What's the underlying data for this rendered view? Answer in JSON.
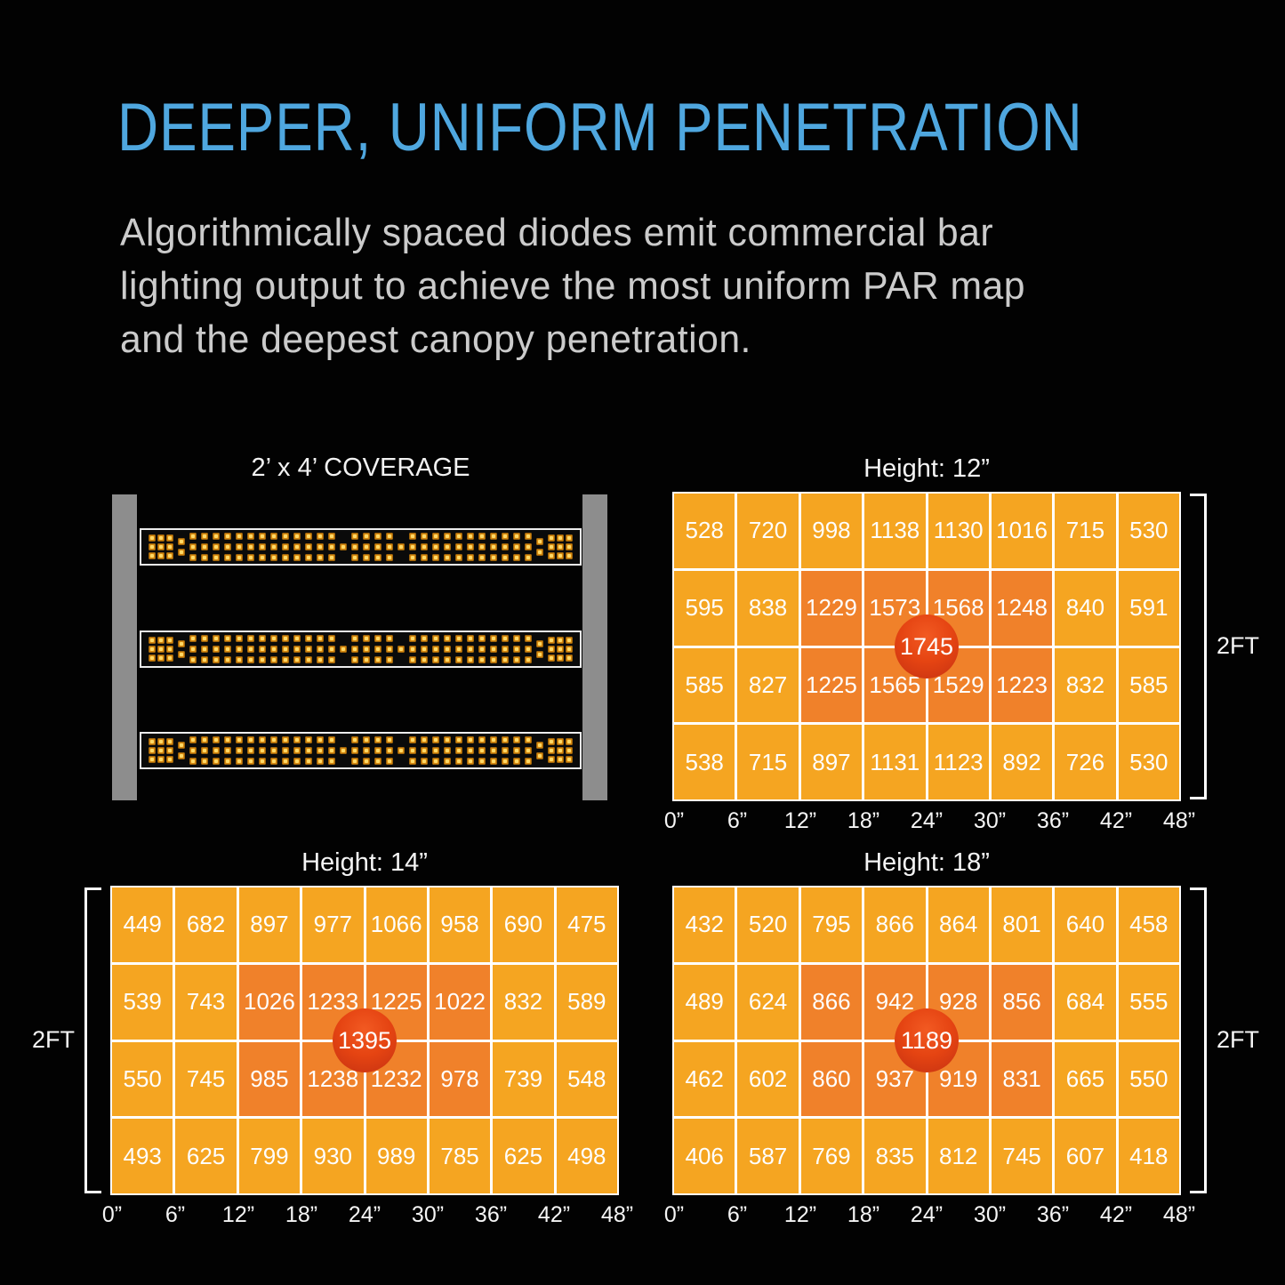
{
  "header": {
    "title": "DEEPER, UNIFORM PENETRATION",
    "body_lines": [
      "Algorithmically spaced diodes emit commercial bar",
      "lighting output to achieve the most uniform PAR map",
      "and the deepest canopy penetration."
    ]
  },
  "coverage": {
    "label": "2’ x 4’ COVERAGE"
  },
  "colors": {
    "accent_blue": "#4FA7DF",
    "body_gray": "#CBCBCB",
    "cell_orange": "#F5A521",
    "cell_hot_orange": "#F0812A",
    "peak_red": "#E54412",
    "rail_gray": "#8D8D8D",
    "diode_amber": "#FFD966"
  },
  "charts": [
    {
      "id": "12in",
      "title": "Height: 12”",
      "center_value": "1745",
      "side_label": "2FT",
      "x_ticks": [
        "0”",
        "6”",
        "12”",
        "18”",
        "24”",
        "30”",
        "36”",
        "42”",
        "48”"
      ],
      "rows": [
        [
          528,
          720,
          998,
          1138,
          1130,
          1016,
          715,
          530
        ],
        [
          595,
          838,
          1229,
          1573,
          1568,
          1248,
          840,
          591
        ],
        [
          585,
          827,
          1225,
          1565,
          1529,
          1223,
          832,
          585
        ],
        [
          538,
          715,
          897,
          1131,
          1123,
          892,
          726,
          530
        ]
      ]
    },
    {
      "id": "14in",
      "title": "Height: 14”",
      "center_value": "1395",
      "side_label": "2FT",
      "x_ticks": [
        "0”",
        "6”",
        "12”",
        "18”",
        "24”",
        "30”",
        "36”",
        "42”",
        "48”"
      ],
      "rows": [
        [
          449,
          682,
          897,
          977,
          1066,
          958,
          690,
          475
        ],
        [
          539,
          743,
          1026,
          1233,
          1225,
          1022,
          832,
          589
        ],
        [
          550,
          745,
          985,
          1238,
          1232,
          978,
          739,
          548
        ],
        [
          493,
          625,
          799,
          930,
          989,
          785,
          625,
          498
        ]
      ]
    },
    {
      "id": "18in",
      "title": "Height: 18”",
      "center_value": "1189",
      "side_label": "2FT",
      "x_ticks": [
        "0”",
        "6”",
        "12”",
        "18”",
        "24”",
        "30”",
        "36”",
        "42”",
        "48”"
      ],
      "rows": [
        [
          432,
          520,
          795,
          866,
          864,
          801,
          640,
          458
        ],
        [
          489,
          624,
          866,
          942,
          928,
          856,
          684,
          555
        ],
        [
          462,
          602,
          860,
          937,
          919,
          831,
          665,
          550
        ],
        [
          406,
          587,
          769,
          835,
          812,
          745,
          607,
          418
        ]
      ]
    }
  ],
  "chart_data": [
    {
      "type": "heatmap",
      "title": "Height: 12\"",
      "x_tick_labels": [
        "0\"",
        "6\"",
        "12\"",
        "18\"",
        "24\"",
        "30\"",
        "36\"",
        "42\"",
        "48\""
      ],
      "y_label": "2FT",
      "values": [
        [
          528,
          720,
          998,
          1138,
          1130,
          1016,
          715,
          530
        ],
        [
          595,
          838,
          1229,
          1573,
          1568,
          1248,
          840,
          591
        ],
        [
          585,
          827,
          1225,
          1565,
          1529,
          1223,
          832,
          585
        ],
        [
          538,
          715,
          897,
          1131,
          1123,
          892,
          726,
          530
        ]
      ],
      "peak_value": 1745,
      "peak_position": "center",
      "legend": "none"
    },
    {
      "type": "heatmap",
      "title": "Height: 14\"",
      "x_tick_labels": [
        "0\"",
        "6\"",
        "12\"",
        "18\"",
        "24\"",
        "30\"",
        "36\"",
        "42\"",
        "48\""
      ],
      "y_label": "2FT",
      "values": [
        [
          449,
          682,
          897,
          977,
          1066,
          958,
          690,
          475
        ],
        [
          539,
          743,
          1026,
          1233,
          1225,
          1022,
          832,
          589
        ],
        [
          550,
          745,
          985,
          1238,
          1232,
          978,
          739,
          548
        ],
        [
          493,
          625,
          799,
          930,
          989,
          785,
          625,
          498
        ]
      ],
      "peak_value": 1395,
      "peak_position": "center",
      "legend": "none"
    },
    {
      "type": "heatmap",
      "title": "Height: 18\"",
      "x_tick_labels": [
        "0\"",
        "6\"",
        "12\"",
        "18\"",
        "24\"",
        "30\"",
        "36\"",
        "42\"",
        "48\""
      ],
      "y_label": "2FT",
      "values": [
        [
          432,
          520,
          795,
          866,
          864,
          801,
          640,
          458
        ],
        [
          489,
          624,
          866,
          942,
          928,
          856,
          684,
          555
        ],
        [
          462,
          602,
          860,
          937,
          919,
          831,
          665,
          550
        ],
        [
          406,
          587,
          769,
          835,
          812,
          745,
          607,
          418
        ]
      ],
      "peak_value": 1189,
      "peak_position": "center",
      "legend": "none"
    }
  ]
}
